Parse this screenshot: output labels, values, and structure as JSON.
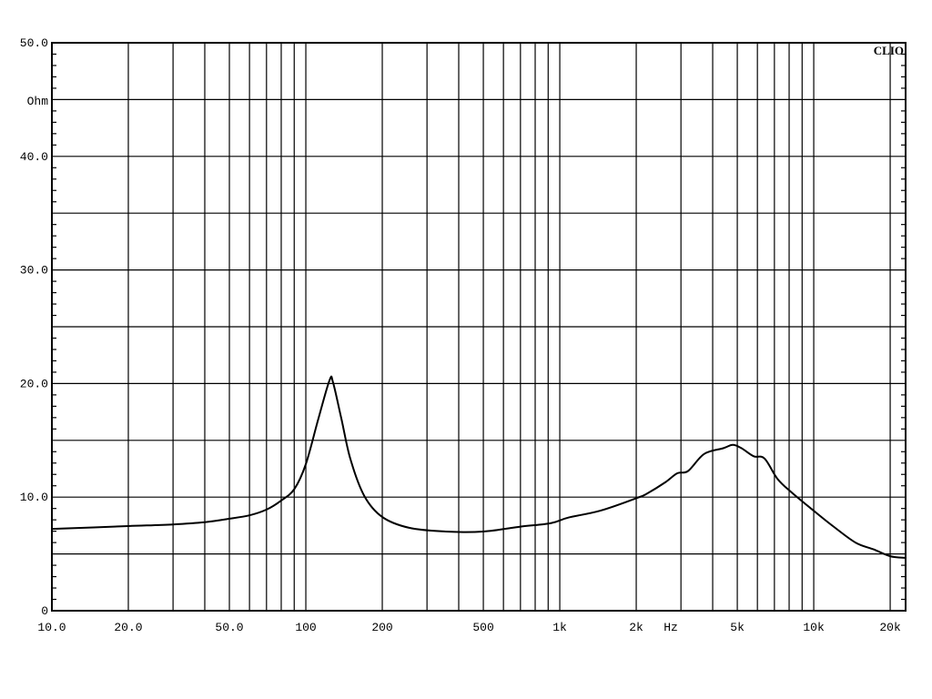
{
  "chart_data": {
    "type": "line",
    "title": "",
    "xlabel": "Hz",
    "ylabel": "Ohm",
    "x_scale": "log",
    "xlim": [
      10,
      23000
    ],
    "ylim": [
      0,
      50
    ],
    "grid": true,
    "brand": "CLIO",
    "line_color": "#000000",
    "x_tick_labels": [
      {
        "value": 10,
        "label": "10.0"
      },
      {
        "value": 20,
        "label": "20.0"
      },
      {
        "value": 50,
        "label": "50.0"
      },
      {
        "value": 100,
        "label": "100"
      },
      {
        "value": 200,
        "label": "200"
      },
      {
        "value": 500,
        "label": "500"
      },
      {
        "value": 1000,
        "label": "1k"
      },
      {
        "value": 2000,
        "label": "2k"
      },
      {
        "value": 5000,
        "label": "5k"
      },
      {
        "value": 10000,
        "label": "10k"
      },
      {
        "value": 20000,
        "label": "20k"
      }
    ],
    "y_tick_labels": [
      {
        "value": 50,
        "label": "50.0"
      },
      {
        "value": 40,
        "label": "40.0"
      },
      {
        "value": 30,
        "label": "30.0"
      },
      {
        "value": 20,
        "label": "20.0"
      },
      {
        "value": 10,
        "label": "10.0"
      },
      {
        "value": 0,
        "label": "0"
      }
    ],
    "series": [
      {
        "x": [
          10,
          20,
          30,
          40,
          50,
          60,
          70,
          80,
          90,
          100,
          112,
          124,
          128,
          138,
          150,
          170,
          200,
          255,
          355,
          500,
          700,
          920,
          1080,
          1440,
          2000,
          2200,
          2600,
          2900,
          3200,
          3700,
          4400,
          4800,
          5200,
          5800,
          6400,
          7200,
          8200,
          10000,
          11900,
          14600,
          17200,
          20000,
          23000
        ],
        "y": [
          7.2,
          7.45,
          7.6,
          7.8,
          8.1,
          8.4,
          8.9,
          9.7,
          10.7,
          12.9,
          16.9,
          20.3,
          20.1,
          16.9,
          13.3,
          10.1,
          8.25,
          7.3,
          6.97,
          6.97,
          7.4,
          7.7,
          8.2,
          8.8,
          9.9,
          10.3,
          11.3,
          12.1,
          12.3,
          13.8,
          14.3,
          14.6,
          14.3,
          13.6,
          13.4,
          11.6,
          10.4,
          8.8,
          7.45,
          6.0,
          5.4,
          4.8,
          4.65
        ]
      }
    ]
  }
}
